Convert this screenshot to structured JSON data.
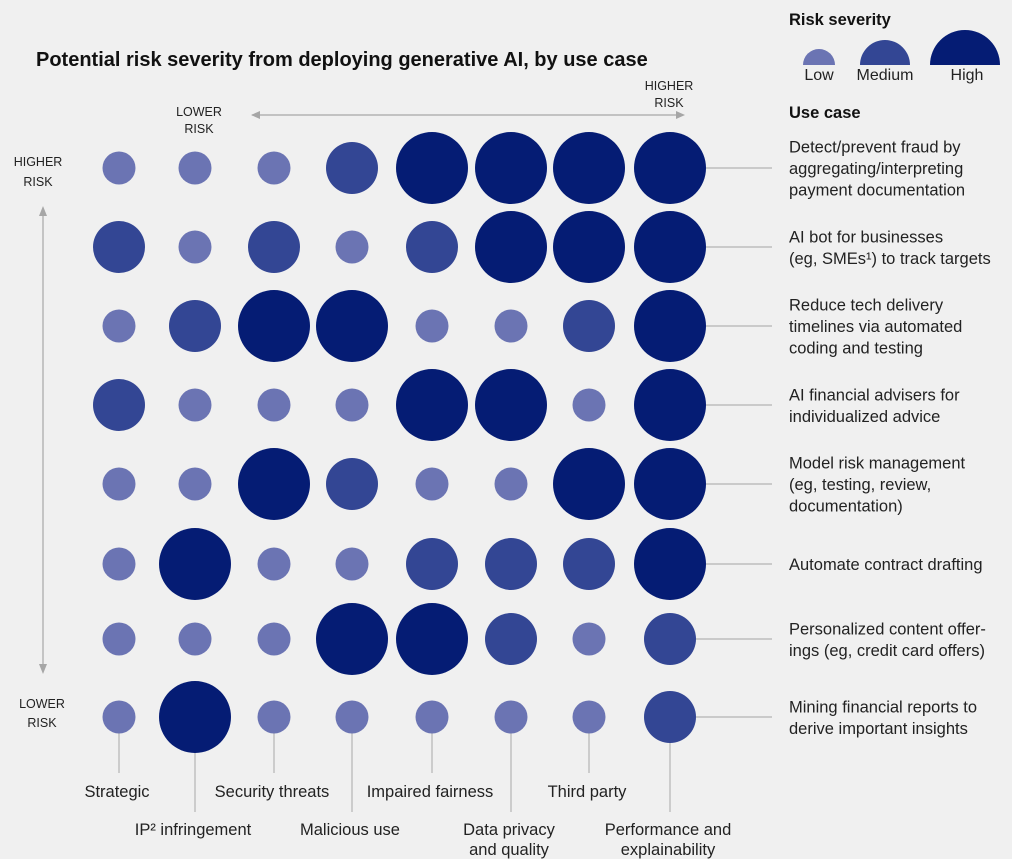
{
  "chart_data": {
    "type": "scatter",
    "title": "Potential risk severity from deploying generative AI, by use case",
    "risk_categories": [
      "Strategic",
      "IP² infringement",
      "Security threats",
      "Malicious use",
      "Impaired fairness",
      "Data privacy and quality",
      "Third party",
      "Performance and explainability"
    ],
    "use_cases": [
      "Detect/prevent fraud by aggregating/interpreting payment documentation",
      "AI bot for businesses (eg, SMEs¹) to track targets",
      "Reduce tech delivery timelines via automated coding and testing",
      "AI financial advisers for individualized advice",
      "Model risk management (eg, testing, review, documentation)",
      "Automate contract drafting",
      "Personalized content offerings (eg, credit card offers)",
      "Mining financial reports to derive important insights"
    ],
    "severity_levels": [
      "Low",
      "Medium",
      "High"
    ],
    "severity_matrix": [
      [
        "Low",
        "Low",
        "Low",
        "Medium",
        "High",
        "High",
        "High",
        "High"
      ],
      [
        "Medium",
        "Low",
        "Medium",
        "Low",
        "Medium",
        "High",
        "High",
        "High"
      ],
      [
        "Low",
        "Medium",
        "High",
        "High",
        "Low",
        "Low",
        "Medium",
        "High"
      ],
      [
        "Medium",
        "Low",
        "Low",
        "Low",
        "High",
        "High",
        "Low",
        "High"
      ],
      [
        "Low",
        "Low",
        "High",
        "Medium",
        "Low",
        "Low",
        "High",
        "High"
      ],
      [
        "Low",
        "High",
        "Low",
        "Low",
        "Medium",
        "Medium",
        "Medium",
        "High"
      ],
      [
        "Low",
        "Low",
        "Low",
        "High",
        "High",
        "Medium",
        "Low",
        "Medium"
      ],
      [
        "Low",
        "High",
        "Low",
        "Low",
        "Low",
        "Low",
        "Low",
        "Medium"
      ]
    ],
    "colors": {
      "Low": "#6b74b3",
      "Medium": "#334694",
      "High": "#051c74"
    },
    "axis_labels": {
      "horizontal_lower": [
        "LOWER",
        "RISK"
      ],
      "horizontal_higher": [
        "HIGHER",
        "RISK"
      ],
      "vertical_higher": [
        "HIGHER",
        "RISK"
      ],
      "vertical_lower": [
        "LOWER",
        "RISK"
      ]
    },
    "legend": {
      "title": "Risk severity",
      "use_case_title": "Use case",
      "placement": "top-right"
    }
  },
  "display": {
    "use_case_lines": [
      [
        "Detect/prevent fraud by",
        "aggregating/interpreting",
        "payment documentation"
      ],
      [
        "AI bot for businesses",
        "(eg, SMEs¹) to track targets"
      ],
      [
        "Reduce tech delivery",
        "timelines via automated",
        "coding and testing"
      ],
      [
        "AI financial advisers for",
        "individualized advice"
      ],
      [
        "Model risk management",
        "(eg, testing, review,",
        "documentation)"
      ],
      [
        "Automate contract drafting"
      ],
      [
        "Personalized content offer-",
        "ings (eg, credit card offers)"
      ],
      [
        "Mining financial reports to",
        "derive important insights"
      ]
    ],
    "risk_category_lines": [
      [
        "Strategic"
      ],
      [
        "IP² infringement"
      ],
      [
        "Security threats"
      ],
      [
        "Malicious use"
      ],
      [
        "Impaired fairness"
      ],
      [
        "Data privacy",
        "and quality"
      ],
      [
        "Third party"
      ],
      [
        "Performance and",
        "explainability"
      ]
    ]
  }
}
